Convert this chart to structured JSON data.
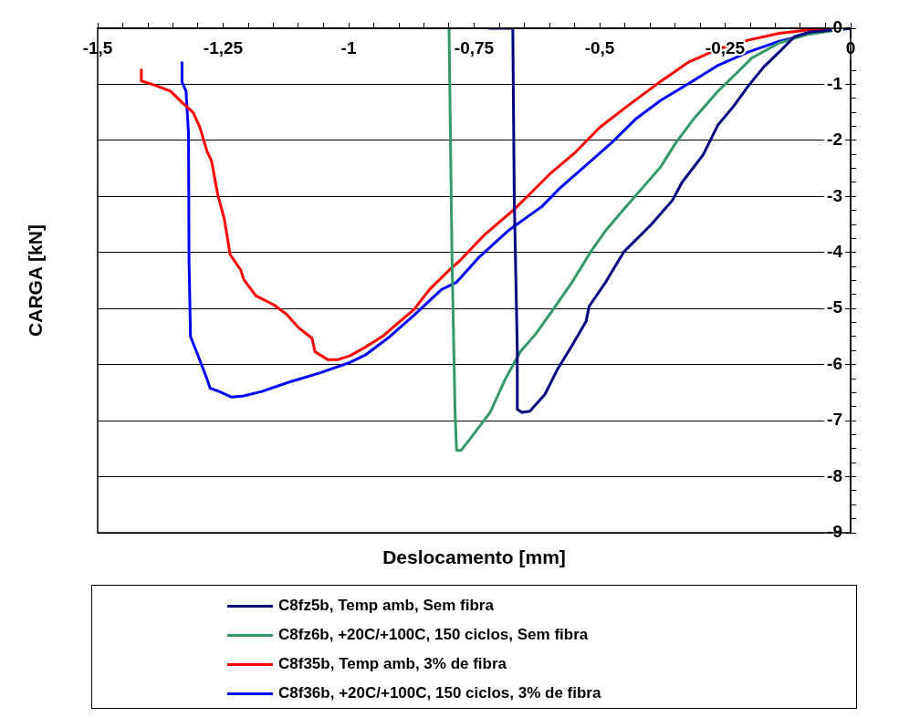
{
  "chart_data": {
    "type": "line",
    "xlabel": "Deslocamento [mm]",
    "ylabel": "CARGA [kN]",
    "xlim": [
      -1.5,
      0
    ],
    "ylim": [
      -9,
      0
    ],
    "xticks": [
      {
        "value": -1.5,
        "label": "-1,5"
      },
      {
        "value": -1.45,
        "label": null
      },
      {
        "value": -1.4,
        "label": null
      },
      {
        "value": -1.35,
        "label": null
      },
      {
        "value": -1.3,
        "label": null
      },
      {
        "value": -1.25,
        "label": "-1,25"
      },
      {
        "value": -1.2,
        "label": null
      },
      {
        "value": -1.15,
        "label": null
      },
      {
        "value": -1.1,
        "label": null
      },
      {
        "value": -1.05,
        "label": null
      },
      -1,
      {
        "value": -0.95,
        "label": null
      },
      {
        "value": -0.9,
        "label": null
      },
      {
        "value": -0.85,
        "label": null
      },
      {
        "value": -0.8,
        "label": null
      },
      {
        "value": -0.75,
        "label": "-0,75"
      },
      {
        "value": -0.7,
        "label": null
      },
      {
        "value": -0.65,
        "label": null
      },
      {
        "value": -0.6,
        "label": null
      },
      {
        "value": -0.55,
        "label": null
      },
      {
        "value": -0.5,
        "label": "-0,5"
      },
      {
        "value": -0.45,
        "label": null
      },
      {
        "value": -0.4,
        "label": null
      },
      {
        "value": -0.35,
        "label": null
      },
      {
        "value": -0.3,
        "label": null
      },
      {
        "value": -0.25,
        "label": "-0,25"
      },
      {
        "value": -0.2,
        "label": null
      },
      {
        "value": -0.15,
        "label": null
      },
      {
        "value": -0.1,
        "label": null
      },
      {
        "value": -0.05,
        "label": null
      },
      0
    ],
    "yticks": [
      -9,
      {
        "value": -8.75,
        "label": null
      },
      {
        "value": -8.5,
        "label": null
      },
      {
        "value": -8.25,
        "label": null
      },
      -8,
      {
        "value": -7.75,
        "label": null
      },
      {
        "value": -7.5,
        "label": null
      },
      {
        "value": -7.25,
        "label": null
      },
      -7,
      {
        "value": -6.75,
        "label": null
      },
      {
        "value": -6.5,
        "label": null
      },
      {
        "value": -6.25,
        "label": null
      },
      -6,
      {
        "value": -5.75,
        "label": null
      },
      {
        "value": -5.5,
        "label": null
      },
      {
        "value": -5.25,
        "label": null
      },
      -5,
      {
        "value": -4.75,
        "label": null
      },
      {
        "value": -4.5,
        "label": null
      },
      {
        "value": -4.25,
        "label": null
      },
      -4,
      {
        "value": -3.75,
        "label": null
      },
      {
        "value": -3.5,
        "label": null
      },
      {
        "value": -3.25,
        "label": null
      },
      -3,
      {
        "value": -2.75,
        "label": null
      },
      {
        "value": -2.5,
        "label": null
      },
      {
        "value": -2.25,
        "label": null
      },
      -2,
      {
        "value": -1.75,
        "label": null
      },
      {
        "value": -1.5,
        "label": null
      },
      {
        "value": -1.25,
        "label": null
      },
      -1,
      {
        "value": -0.75,
        "label": null
      },
      {
        "value": -0.5,
        "label": null
      },
      {
        "value": -0.25,
        "label": null
      },
      0
    ],
    "grid": "y",
    "legend": "bottom",
    "marker": "none",
    "line_style": "solid",
    "series": [
      {
        "name": "C8fz5b, Temp amb, Sem fibra",
        "color": "#000080",
        "x": [
          -0.72,
          -0.673,
          -0.67,
          -0.664,
          -0.664,
          -0.655,
          -0.639,
          -0.609,
          -0.585,
          -0.555,
          -0.527,
          -0.521,
          -0.488,
          -0.452,
          -0.397,
          -0.355,
          -0.336,
          -0.294,
          -0.264,
          -0.233,
          -0.203,
          -0.173,
          -0.142,
          -0.112,
          -0.082,
          0
        ],
        "values": [
          0,
          0,
          -3.07,
          -5.77,
          -6.8,
          -6.85,
          -6.83,
          -6.53,
          -6.1,
          -5.66,
          -5.23,
          -4.96,
          -4.53,
          -3.99,
          -3.5,
          -3.07,
          -2.75,
          -2.26,
          -1.72,
          -1.39,
          -1.02,
          -0.69,
          -0.42,
          -0.15,
          -0.07,
          0
        ]
      },
      {
        "name": "C8fz6b, +20C/+100C, 150 ciclos, Sem fibra",
        "color": "#339966",
        "x": [
          -0.8,
          -0.794,
          -0.788,
          -0.785,
          -0.776,
          -0.755,
          -0.718,
          -0.688,
          -0.658,
          -0.627,
          -0.597,
          -0.555,
          -0.518,
          -0.488,
          -0.452,
          -0.415,
          -0.379,
          -0.348,
          -0.312,
          -0.264,
          -0.233,
          -0.197,
          -0.142,
          -0.082,
          0
        ],
        "values": [
          0,
          -4.15,
          -6.85,
          -7.53,
          -7.53,
          -7.29,
          -6.85,
          -6.26,
          -5.77,
          -5.45,
          -5.07,
          -4.53,
          -3.99,
          -3.61,
          -3.23,
          -2.85,
          -2.48,
          -2.04,
          -1.61,
          -1.12,
          -0.85,
          -0.53,
          -0.26,
          -0.1,
          0
        ]
      },
      {
        "name": "C8f35b, Temp amb, 3% de fibra",
        "color": "#ff0000",
        "x": [
          -1.413,
          -1.413,
          -1.385,
          -1.355,
          -1.33,
          -1.31,
          -1.297,
          -1.282,
          -1.273,
          -1.261,
          -1.248,
          -1.236,
          -1.215,
          -1.209,
          -1.185,
          -1.148,
          -1.124,
          -1.1,
          -1.073,
          -1.067,
          -1.042,
          -1.021,
          -0.997,
          -0.967,
          -0.93,
          -0.906,
          -0.87,
          -0.839,
          -0.797,
          -0.779,
          -0.73,
          -0.67,
          -0.597,
          -0.548,
          -0.5,
          -0.445,
          -0.385,
          -0.324,
          -0.264,
          -0.203,
          -0.142,
          -0.082,
          -0.052,
          0
        ],
        "values": [
          -0.74,
          -0.94,
          -1.02,
          -1.12,
          -1.34,
          -1.5,
          -1.75,
          -2.2,
          -2.37,
          -2.96,
          -3.39,
          -4.04,
          -4.31,
          -4.48,
          -4.77,
          -4.94,
          -5.1,
          -5.34,
          -5.53,
          -5.77,
          -5.91,
          -5.91,
          -5.84,
          -5.69,
          -5.48,
          -5.29,
          -5.02,
          -4.66,
          -4.29,
          -4.15,
          -3.69,
          -3.23,
          -2.58,
          -2.21,
          -1.77,
          -1.39,
          -0.99,
          -0.61,
          -0.37,
          -0.21,
          -0.09,
          -0.03,
          -0.02,
          0
        ]
      },
      {
        "name": "C8f36b, +20C/+100C, 150 ciclos, 3% de fibra",
        "color": "#0000ff",
        "x": [
          -1.332,
          -1.332,
          -1.324,
          -1.319,
          -1.318,
          -1.315,
          -1.303,
          -1.282,
          -1.276,
          -1.258,
          -1.233,
          -1.209,
          -1.173,
          -1.118,
          -1.058,
          -0.997,
          -0.967,
          -0.918,
          -0.87,
          -0.815,
          -0.785,
          -0.742,
          -0.682,
          -0.615,
          -0.579,
          -0.524,
          -0.476,
          -0.427,
          -0.379,
          -0.318,
          -0.264,
          -0.203,
          -0.142,
          -0.082,
          -0.033,
          0
        ],
        "values": [
          -0.61,
          -0.96,
          -1.12,
          -1.88,
          -4.15,
          -5.5,
          -5.77,
          -6.26,
          -6.42,
          -6.48,
          -6.58,
          -6.56,
          -6.48,
          -6.31,
          -6.15,
          -5.96,
          -5.83,
          -5.5,
          -5.12,
          -4.66,
          -4.53,
          -4.1,
          -3.61,
          -3.18,
          -2.85,
          -2.42,
          -2.04,
          -1.61,
          -1.29,
          -0.96,
          -0.66,
          -0.42,
          -0.23,
          -0.1,
          -0.03,
          0
        ]
      }
    ]
  }
}
